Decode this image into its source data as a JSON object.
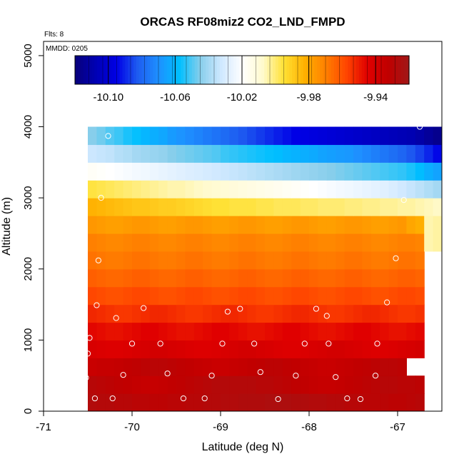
{
  "chart_data": {
    "type": "heatmap",
    "title": "ORCAS RF08miz2 CO2_LND_FMPD",
    "flights_label": "Flts: 8",
    "date_label": "MMDD: 0205",
    "xlabel": "Latitude (deg N)",
    "ylabel": "Altitude (m)",
    "xlim": [
      -71,
      -66.5
    ],
    "ylim": [
      0,
      5200
    ],
    "x_ticks": [
      -71,
      -70,
      -69,
      -68,
      -67
    ],
    "x_tick_labels": [
      "-71",
      "-70",
      "-69",
      "-68",
      "-67"
    ],
    "y_ticks": [
      0,
      1000,
      2000,
      3000,
      4000,
      5000
    ],
    "y_tick_labels": [
      "0",
      "1000",
      "2000",
      "3000",
      "4000",
      "5000"
    ],
    "colorbar": {
      "min": -10.12,
      "max": -9.92,
      "ticks": [
        -10.1,
        -10.06,
        -10.02,
        -9.98,
        -9.94
      ],
      "tick_labels": [
        "-10.10",
        "-10.06",
        "-10.02",
        "-9.98",
        "-9.94"
      ],
      "colors": [
        "#08007a",
        "#0000b4",
        "#0000e6",
        "#1e5cf0",
        "#1e90ff",
        "#00bfff",
        "#87ceeb",
        "#cfe8ff",
        "#ffffff",
        "#fffacd",
        "#ffe135",
        "#ffb000",
        "#ff8000",
        "#ff4500",
        "#e00000",
        "#c00000",
        "#a01818"
      ]
    },
    "x_bins": [
      -70.5,
      -70.25,
      -70.0,
      -69.75,
      -69.5,
      -69.25,
      -69.0,
      -68.75,
      -68.5,
      -68.25,
      -68.0,
      -67.75,
      -67.5,
      -67.25,
      -67.0,
      -66.75,
      -66.5
    ],
    "y_bins": [
      0,
      250,
      500,
      750,
      1000,
      1250,
      1500,
      1750,
      2000,
      2250,
      2500,
      2750,
      3000,
      3250,
      3500,
      3750,
      4000
    ],
    "rows": [
      {
        "alt": [
          0,
          250
        ],
        "x_start": -70.5,
        "values": [
          -9.927,
          -9.928,
          -9.928,
          -9.929,
          -9.929,
          -9.93,
          -9.93,
          -9.931,
          -9.931,
          -9.93,
          -9.93,
          -9.929,
          -9.929,
          -9.928,
          -9.928,
          -9.927,
          -9.927,
          -9.926,
          -9.926,
          -9.926,
          -9.925,
          -9.925,
          -9.925,
          -9.926,
          -9.926,
          -9.927,
          -9.927,
          -9.928,
          -9.928,
          -9.929,
          -9.929,
          -9.93,
          -9.93,
          -9.93,
          -9.931,
          -9.931,
          -9.93,
          -9.929
        ]
      },
      {
        "alt": [
          250,
          500
        ],
        "x_start": -70.5,
        "values": [
          -9.929,
          -9.93,
          -9.931,
          -9.932,
          -9.933,
          -9.934,
          -9.935,
          -9.935,
          -9.934,
          -9.933,
          -9.932,
          -9.931,
          -9.93,
          -9.929,
          -9.928,
          -9.928,
          -9.928,
          -9.928,
          -9.928,
          -9.929,
          -9.929,
          -9.93,
          -9.931,
          -9.932,
          -9.933,
          -9.934,
          -9.935,
          -9.935,
          -9.934,
          -9.933,
          -9.932,
          -9.931,
          -9.93,
          -9.929,
          -9.929,
          -9.93,
          -9.93,
          -9.931
        ]
      },
      {
        "alt": [
          500,
          750
        ],
        "x_start": -70.5,
        "values": [
          -9.936,
          -9.935,
          -9.935,
          -9.934,
          -9.933,
          -9.932,
          -9.931,
          -9.93,
          -9.93,
          -9.931,
          -9.932,
          -9.933,
          -9.934,
          -9.935,
          -9.936,
          -9.936,
          -9.935,
          -9.934,
          -9.933,
          -9.932,
          -9.931,
          -9.931,
          -9.932,
          -9.933,
          -9.934,
          -9.935,
          -9.936,
          -9.936,
          -9.935,
          -9.934,
          -9.933,
          -9.932,
          -9.931,
          -9.93,
          -9.93,
          -9.931
        ]
      },
      {
        "alt": [
          750,
          1000
        ],
        "x_start": -70.5,
        "values": [
          -9.942,
          -9.943,
          -9.944,
          -9.944,
          -9.943,
          -9.942,
          -9.941,
          -9.94,
          -9.94,
          -9.941,
          -9.942,
          -9.943,
          -9.944,
          -9.944,
          -9.943,
          -9.942,
          -9.941,
          -9.94,
          -9.94,
          -9.941,
          -9.942,
          -9.943,
          -9.944,
          -9.944,
          -9.943,
          -9.942,
          -9.941,
          -9.94,
          -9.94,
          -9.941,
          -9.942,
          -9.943,
          -9.944,
          -9.944,
          -9.943,
          -9.942,
          -9.941,
          -9.94
        ]
      },
      {
        "alt": [
          1000,
          1250
        ],
        "x_start": -70.5,
        "values": [
          -9.946,
          -9.947,
          -9.948,
          -9.948,
          -9.947,
          -9.946,
          -9.945,
          -9.945,
          -9.946,
          -9.947,
          -9.948,
          -9.948,
          -9.947,
          -9.946,
          -9.945,
          -9.945,
          -9.946,
          -9.947,
          -9.948,
          -9.948,
          -9.947,
          -9.946,
          -9.945,
          -9.945,
          -9.946,
          -9.947,
          -9.948,
          -9.948,
          -9.947,
          -9.946,
          -9.945,
          -9.945,
          -9.946,
          -9.947,
          -9.948,
          -9.948,
          -9.947,
          -9.946
        ]
      },
      {
        "alt": [
          1250,
          1500
        ],
        "x_start": -70.5,
        "values": [
          -9.952,
          -9.953,
          -9.954,
          -9.955,
          -9.955,
          -9.954,
          -9.953,
          -9.952,
          -9.952,
          -9.953,
          -9.954,
          -9.955,
          -9.955,
          -9.954,
          -9.953,
          -9.952,
          -9.952,
          -9.953,
          -9.954,
          -9.955,
          -9.955,
          -9.954,
          -9.953,
          -9.952,
          -9.952,
          -9.953,
          -9.954,
          -9.955,
          -9.955,
          -9.954,
          -9.953,
          -9.952,
          -9.952,
          -9.953,
          -9.954,
          -9.955,
          -9.955,
          -9.954
        ]
      },
      {
        "alt": [
          1500,
          1750
        ],
        "x_start": -70.5,
        "values": [
          -9.958,
          -9.959,
          -9.96,
          -9.96,
          -9.959,
          -9.958,
          -9.958,
          -9.959,
          -9.96,
          -9.96,
          -9.959,
          -9.958,
          -9.958,
          -9.959,
          -9.96,
          -9.96,
          -9.959,
          -9.958,
          -9.958,
          -9.959,
          -9.96,
          -9.96,
          -9.959,
          -9.958,
          -9.958,
          -9.959,
          -9.96,
          -9.96,
          -9.959,
          -9.958,
          -9.958,
          -9.959,
          -9.96,
          -9.96,
          -9.959,
          -9.958,
          -9.958,
          -9.959
        ]
      },
      {
        "alt": [
          1750,
          2000
        ],
        "x_start": -70.5,
        "values": [
          -9.963,
          -9.964,
          -9.965,
          -9.965,
          -9.964,
          -9.963,
          -9.963,
          -9.964,
          -9.965,
          -9.965,
          -9.964,
          -9.963,
          -9.963,
          -9.964,
          -9.965,
          -9.965,
          -9.964,
          -9.963,
          -9.963,
          -9.964,
          -9.965,
          -9.965,
          -9.964,
          -9.963,
          -9.963,
          -9.964,
          -9.965,
          -9.965,
          -9.964,
          -9.963,
          -9.963,
          -9.964,
          -9.965,
          -9.965,
          -9.964,
          -9.963,
          -9.963,
          -9.964
        ]
      },
      {
        "alt": [
          2000,
          2250
        ],
        "x_start": -70.5,
        "values": [
          -9.967,
          -9.968,
          -9.969,
          -9.969,
          -9.968,
          -9.967,
          -9.967,
          -9.968,
          -9.969,
          -9.969,
          -9.968,
          -9.967,
          -9.967,
          -9.968,
          -9.969,
          -9.969,
          -9.968,
          -9.967,
          -9.967,
          -9.968,
          -9.969,
          -9.969,
          -9.968,
          -9.967,
          -9.967,
          -9.968,
          -9.969,
          -9.969,
          -9.968,
          -9.967,
          -9.967,
          -9.968,
          -9.969,
          -9.969,
          -9.968,
          -9.967,
          -9.967,
          -9.968
        ]
      },
      {
        "alt": [
          2250,
          2500
        ],
        "x_start": -70.5,
        "values": [
          -9.97,
          -9.971,
          -9.972,
          -9.972,
          -9.971,
          -9.97,
          -9.97,
          -9.971,
          -9.972,
          -9.972,
          -9.971,
          -9.97,
          -9.97,
          -9.971,
          -9.972,
          -9.972,
          -9.971,
          -9.97,
          -9.97,
          -9.971,
          -9.972,
          -9.972,
          -9.971,
          -9.97,
          -9.97,
          -9.971,
          -9.972,
          -9.972,
          -9.971,
          -9.97,
          -9.97,
          -9.971,
          -9.972,
          -9.972,
          -9.971,
          -9.97,
          -9.97,
          -9.971,
          -10.005,
          -10.004,
          -10.005
        ]
      },
      {
        "alt": [
          2500,
          2750
        ],
        "x_start": -70.5,
        "values": [
          -9.976,
          -9.977,
          -9.978,
          -9.978,
          -9.977,
          -9.976,
          -9.976,
          -9.977,
          -9.978,
          -9.978,
          -9.977,
          -9.976,
          -9.976,
          -9.977,
          -9.978,
          -9.978,
          -9.977,
          -9.976,
          -9.976,
          -9.977,
          -9.978,
          -9.978,
          -9.977,
          -9.976,
          -9.976,
          -9.977,
          -9.978,
          -9.978,
          -9.977,
          -9.976,
          -9.976,
          -9.977,
          -9.978,
          -9.978,
          -9.977,
          -9.976,
          -9.98,
          -9.982,
          -10.005,
          -10.004,
          -10.005
        ]
      },
      {
        "alt": [
          2750,
          3000
        ],
        "x_start": -70.5,
        "values": [
          -9.983,
          -9.984,
          -9.985,
          -9.986,
          -9.987,
          -9.988,
          -9.988,
          -9.989,
          -9.99,
          -9.99,
          -9.991,
          -9.992,
          -9.993,
          -9.994,
          -9.995,
          -9.995,
          -9.996,
          -9.996,
          -9.996,
          -9.997,
          -9.997,
          -9.998,
          -9.998,
          -9.998,
          -9.999,
          -9.999,
          -10.0,
          -10.0,
          -10.0,
          -10.001,
          -10.001,
          -10.002,
          -10.002,
          -10.003,
          -10.003,
          -10.004,
          -10.004,
          -10.005,
          -10.006,
          -10.007,
          -10.008
        ]
      },
      {
        "alt": [
          3000,
          3250
        ],
        "x_start": -70.5,
        "values": [
          -9.996,
          -9.997,
          -9.998,
          -9.999,
          -10.0,
          -10.001,
          -10.002,
          -10.003,
          -10.004,
          -10.005,
          -10.005,
          -10.006,
          -10.007,
          -10.008,
          -10.009,
          -10.01,
          -10.011,
          -10.012,
          -10.013,
          -10.014,
          -10.015,
          -10.016,
          -10.017,
          -10.018,
          -10.019,
          -10.02,
          -10.021,
          -10.022,
          -10.023,
          -10.024,
          -10.025,
          -10.026,
          -10.027,
          -10.028,
          -10.03,
          -10.032,
          -10.034,
          -10.036,
          -10.038,
          -10.04,
          -10.045
        ]
      },
      {
        "alt": [
          3250,
          3500
        ],
        "x_start": -70.5,
        "values": [
          -10.018,
          -10.019,
          -10.02,
          -10.021,
          -10.022,
          -10.023,
          -10.024,
          -10.025,
          -10.026,
          -10.027,
          -10.028,
          -10.029,
          -10.03,
          -10.031,
          -10.032,
          -10.033,
          -10.034,
          -10.035,
          -10.036,
          -10.037,
          -10.038,
          -10.039,
          -10.04,
          -10.041,
          -10.042,
          -10.043,
          -10.044,
          -10.045,
          -10.046,
          -10.047,
          -10.048,
          -10.049,
          -10.05,
          -10.051,
          -10.052,
          -10.053,
          -10.055,
          -10.058,
          -10.062,
          -10.065,
          -10.068
        ]
      },
      {
        "alt": [
          3500,
          3750
        ],
        "x_start": -70.5,
        "values": [
          -10.033,
          -10.034,
          -10.035,
          -10.037,
          -10.038,
          -10.04,
          -10.041,
          -10.042,
          -10.043,
          -10.045,
          -10.046,
          -10.047,
          -10.048,
          -10.049,
          -10.05,
          -10.052,
          -10.053,
          -10.054,
          -10.055,
          -10.056,
          -10.057,
          -10.058,
          -10.06,
          -10.061,
          -10.062,
          -10.063,
          -10.065,
          -10.066,
          -10.067,
          -10.068,
          -10.07,
          -10.072,
          -10.074,
          -10.076,
          -10.078,
          -10.08,
          -10.083,
          -10.086,
          -10.09,
          -10.094,
          -10.098
        ]
      },
      {
        "alt": [
          3750,
          4000
        ],
        "x_start": -70.5,
        "values": [
          -10.045,
          -10.047,
          -10.05,
          -10.052,
          -10.055,
          -10.057,
          -10.06,
          -10.062,
          -10.064,
          -10.067,
          -10.069,
          -10.071,
          -10.073,
          -10.075,
          -10.077,
          -10.079,
          -10.081,
          -10.083,
          -10.085,
          -10.087,
          -10.089,
          -10.091,
          -10.093,
          -10.095,
          -10.096,
          -10.097,
          -10.098,
          -10.099,
          -10.1,
          -10.101,
          -10.102,
          -10.103,
          -10.104,
          -10.105,
          -10.106,
          -10.107,
          -10.108,
          -10.11,
          -10.113,
          -10.116,
          -10.118,
          -10.12,
          -10.125,
          -10.13,
          -10.13
        ]
      }
    ],
    "flight_points": [
      [
        -70.27,
        3870
      ],
      [
        -70.35,
        3000
      ],
      [
        -70.38,
        2120
      ],
      [
        -70.4,
        1490
      ],
      [
        -70.18,
        1310
      ],
      [
        -69.87,
        1450
      ],
      [
        -70.48,
        1030
      ],
      [
        -70.5,
        810
      ],
      [
        -70.52,
        470
      ],
      [
        -70.1,
        510
      ],
      [
        -69.6,
        530
      ],
      [
        -69.1,
        500
      ],
      [
        -68.55,
        550
      ],
      [
        -68.15,
        500
      ],
      [
        -67.7,
        480
      ],
      [
        -67.25,
        500
      ],
      [
        -70.42,
        180
      ],
      [
        -70.22,
        180
      ],
      [
        -69.42,
        180
      ],
      [
        -69.18,
        180
      ],
      [
        -68.35,
        170
      ],
      [
        -67.57,
        180
      ],
      [
        -67.42,
        170
      ],
      [
        -70.0,
        950
      ],
      [
        -69.68,
        950
      ],
      [
        -68.98,
        950
      ],
      [
        -68.62,
        950
      ],
      [
        -68.05,
        950
      ],
      [
        -67.78,
        950
      ],
      [
        -67.23,
        950
      ],
      [
        -68.92,
        1400
      ],
      [
        -68.78,
        1440
      ],
      [
        -67.92,
        1440
      ],
      [
        -67.8,
        1340
      ],
      [
        -67.12,
        1530
      ],
      [
        -67.02,
        2150
      ],
      [
        -66.93,
        2970
      ],
      [
        -66.75,
        4000
      ]
    ]
  }
}
